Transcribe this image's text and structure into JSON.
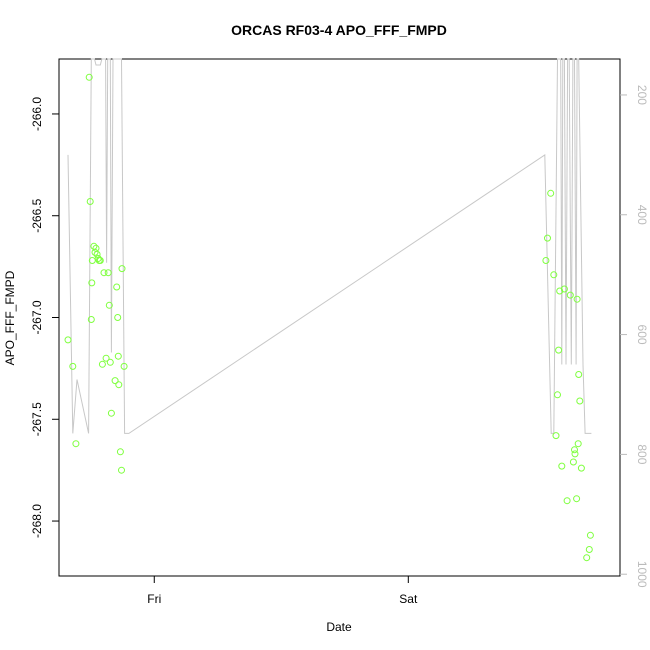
{
  "chart_data": {
    "type": "scatter",
    "title": "ORCAS RF03-4 APO_FFF_FMPD",
    "xlabel": "Date",
    "ylabel": "APO_FFF_FMPD",
    "x_tick_labels": [
      "Fri",
      "Sat"
    ],
    "x_tick_positions": [
      24,
      48
    ],
    "xlim": [
      15.0,
      68.0
    ],
    "ylim": [
      -268.27,
      -265.73
    ],
    "y_ticks": [
      -266.0,
      -266.5,
      -267.0,
      -267.5,
      -268.0
    ],
    "y_tick_labels": [
      "-266.0",
      "-266.5",
      "-267.0",
      "-267.5",
      "-268.0"
    ],
    "y2_lim": [
      1003,
      140
    ],
    "y2_ticks": [
      200,
      400,
      600,
      800,
      1000
    ],
    "y2_tick_labels": [
      "200",
      "400",
      "600",
      "800",
      "1000"
    ],
    "colors": {
      "points": "#7fff3f",
      "line": "#c8c8c8",
      "axes": "#000000",
      "right_axis": "#bbbbbb"
    },
    "series": [
      {
        "values": [
          [
            15.85,
            -267.11
          ],
          [
            16.3,
            -267.24
          ],
          [
            16.6,
            -267.62
          ],
          [
            17.85,
            -265.82
          ],
          [
            17.95,
            -266.43
          ],
          [
            18.05,
            -267.01
          ],
          [
            18.1,
            -266.83
          ],
          [
            18.15,
            -266.72
          ],
          [
            18.3,
            -266.65
          ],
          [
            18.4,
            -266.68
          ],
          [
            18.5,
            -266.66
          ],
          [
            18.6,
            -266.69
          ],
          [
            18.7,
            -266.71
          ],
          [
            18.8,
            -266.72
          ],
          [
            18.9,
            -266.72
          ],
          [
            19.1,
            -267.23
          ],
          [
            19.25,
            -266.78
          ],
          [
            19.45,
            -267.2
          ],
          [
            19.65,
            -266.78
          ],
          [
            19.75,
            -266.94
          ],
          [
            19.85,
            -267.22
          ],
          [
            19.95,
            -267.47
          ],
          [
            20.3,
            -267.31
          ],
          [
            20.45,
            -266.85
          ],
          [
            20.55,
            -267.0
          ],
          [
            20.6,
            -267.19
          ],
          [
            20.65,
            -267.33
          ],
          [
            20.8,
            -267.66
          ],
          [
            20.9,
            -267.75
          ],
          [
            20.95,
            -266.76
          ],
          [
            21.15,
            -267.24
          ],
          [
            61.0,
            -266.72
          ],
          [
            61.15,
            -266.61
          ],
          [
            61.45,
            -266.39
          ],
          [
            61.75,
            -266.79
          ],
          [
            61.95,
            -267.58
          ],
          [
            62.1,
            -267.38
          ],
          [
            62.2,
            -267.16
          ],
          [
            62.3,
            -266.87
          ],
          [
            62.5,
            -267.73
          ],
          [
            62.75,
            -266.86
          ],
          [
            63.0,
            -267.9
          ],
          [
            63.3,
            -266.89
          ],
          [
            63.6,
            -267.71
          ],
          [
            63.7,
            -267.65
          ],
          [
            63.75,
            -267.67
          ],
          [
            63.9,
            -267.89
          ],
          [
            63.95,
            -266.91
          ],
          [
            64.05,
            -267.62
          ],
          [
            64.1,
            -267.28
          ],
          [
            64.2,
            -267.41
          ],
          [
            64.35,
            -267.74
          ],
          [
            64.85,
            -268.18
          ],
          [
            65.1,
            -268.14
          ],
          [
            65.2,
            -268.07
          ]
        ]
      },
      {
        "axis": "right",
        "values": [
          [
            15.85,
            300
          ],
          [
            16.3,
            765
          ],
          [
            16.7,
            675
          ],
          [
            17.8,
            765
          ],
          [
            18.05,
            80
          ],
          [
            18.2,
            80
          ],
          [
            18.35,
            120
          ],
          [
            18.5,
            150
          ],
          [
            18.65,
            150
          ],
          [
            18.9,
            150
          ],
          [
            19.05,
            80
          ],
          [
            19.25,
            80
          ],
          [
            19.4,
            80
          ],
          [
            19.5,
            480
          ],
          [
            19.6,
            80
          ],
          [
            19.7,
            80
          ],
          [
            19.85,
            80
          ],
          [
            19.95,
            630
          ],
          [
            20.1,
            80
          ],
          [
            20.3,
            80
          ],
          [
            20.5,
            80
          ],
          [
            20.7,
            80
          ],
          [
            20.9,
            80
          ],
          [
            21.2,
            765
          ],
          [
            21.6,
            765
          ],
          [
            60.9,
            300
          ],
          [
            61.5,
            765
          ],
          [
            61.75,
            765
          ],
          [
            62.1,
            80
          ],
          [
            62.4,
            80
          ],
          [
            62.5,
            650
          ],
          [
            62.6,
            80
          ],
          [
            62.75,
            80
          ],
          [
            62.9,
            650
          ],
          [
            63.05,
            80
          ],
          [
            63.2,
            80
          ],
          [
            63.4,
            650
          ],
          [
            63.55,
            80
          ],
          [
            63.7,
            80
          ],
          [
            63.85,
            650
          ],
          [
            63.95,
            80
          ],
          [
            64.1,
            80
          ],
          [
            64.5,
            650
          ],
          [
            64.7,
            765
          ],
          [
            65.3,
            765
          ]
        ]
      }
    ]
  }
}
